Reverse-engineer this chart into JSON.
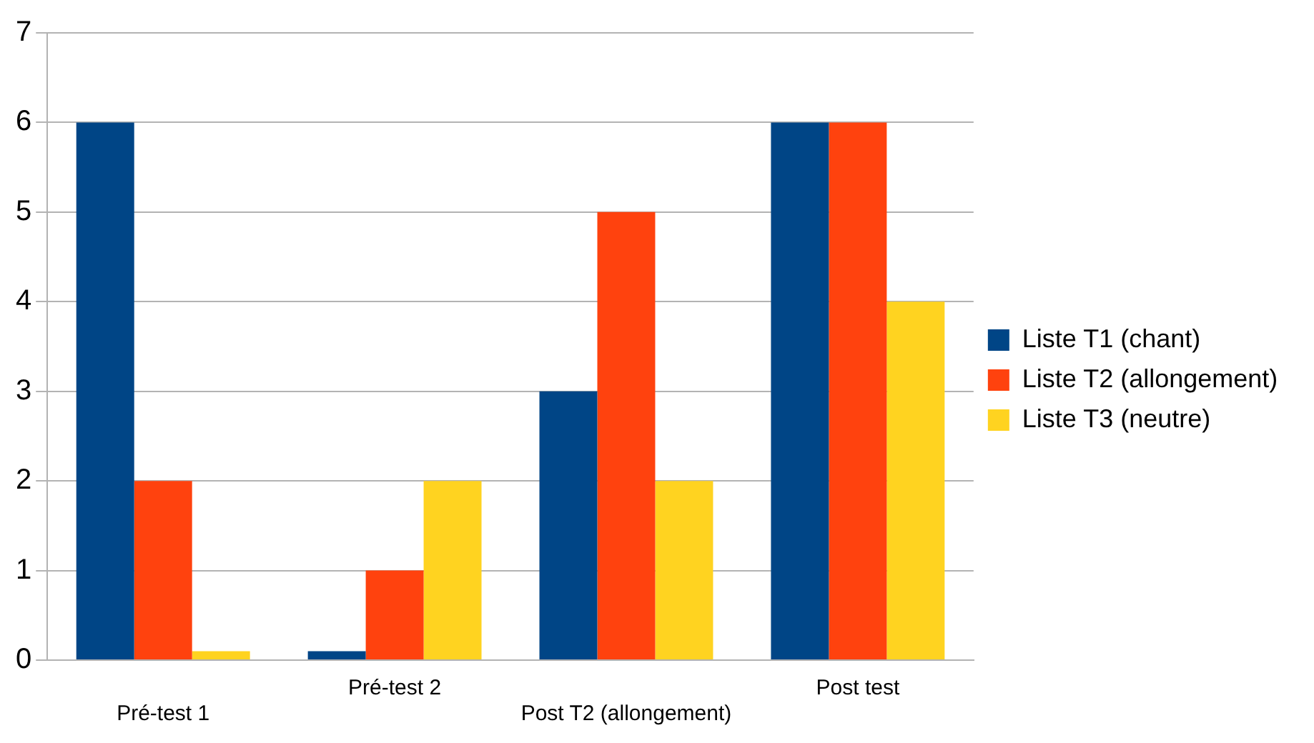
{
  "chart_data": {
    "type": "bar",
    "categories": [
      "Pré-test 1",
      "Pré-test 2",
      "Post T2 (allongement)",
      "Post test"
    ],
    "series": [
      {
        "name": "Liste T1 (chant)",
        "color": "#004586",
        "values": [
          6,
          0.1,
          3,
          6
        ]
      },
      {
        "name": "Liste T2 (allongement)",
        "color": "#ff420e",
        "values": [
          2,
          1,
          5,
          6
        ]
      },
      {
        "name": "Liste T3 (neutre)",
        "color": "#ffd320",
        "values": [
          0.1,
          2,
          2,
          4
        ]
      }
    ],
    "ylim": [
      0,
      7
    ],
    "yticks": [
      0,
      1,
      2,
      3,
      4,
      5,
      6,
      7
    ],
    "grid": "y",
    "legend": "right"
  }
}
